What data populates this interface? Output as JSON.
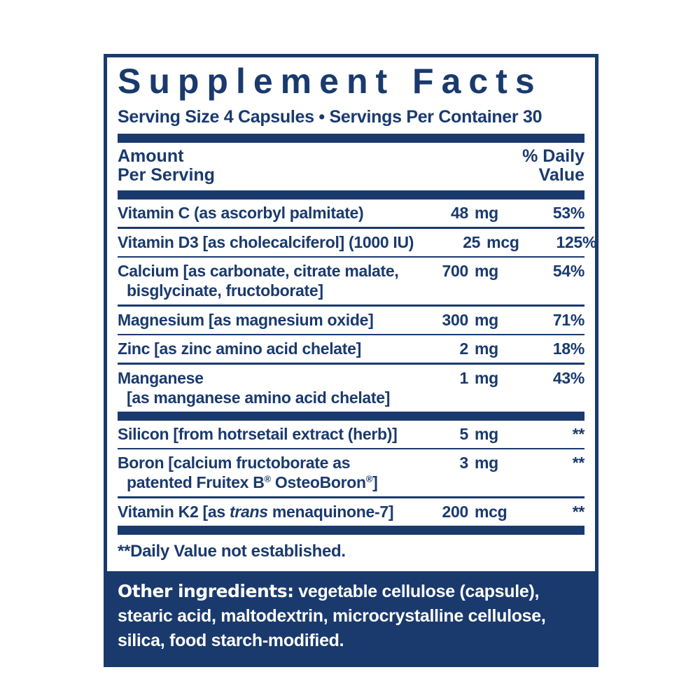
{
  "colors": {
    "navy": "#1a3a6e",
    "panel_background": "#ffffff",
    "footer_text": "#ffffff"
  },
  "title": "Supplement Facts",
  "serving_line": "Serving Size 4 Capsules • Servings Per Container 30",
  "header": {
    "amount_line1": "Amount",
    "amount_line2": "Per Serving",
    "dv_line1": "% Daily",
    "dv_line2": "Value"
  },
  "rows": [
    {
      "name": "Vitamin C (as ascorbyl palmitate)",
      "amount_num": "48",
      "amount_unit": "mg",
      "dv": "53%"
    },
    {
      "name": "Vitamin D3 [as cholecalciferol] (1000 IU)",
      "amount_num": "25",
      "amount_unit": "mcg",
      "dv": "125%"
    },
    {
      "name": "Calcium [as carbonate, citrate malate,",
      "name_line2": "bisglycinate, fructoborate]",
      "amount_num": "700",
      "amount_unit": "mg",
      "dv": "54%"
    },
    {
      "name": "Magnesium [as magnesium oxide]",
      "amount_num": "300",
      "amount_unit": "mg",
      "dv": "71%"
    },
    {
      "name": "Zinc [as zinc amino acid chelate]",
      "amount_num": "2",
      "amount_unit": "mg",
      "dv": "18%"
    },
    {
      "name": "Manganese",
      "name_line2": "[as manganese amino acid chelate]",
      "amount_num": "1",
      "amount_unit": "mg",
      "dv": "43%"
    },
    {
      "name": "Silicon [from hotrsetail extract (herb)]",
      "amount_num": "5",
      "amount_unit": "mg",
      "dv": "**"
    },
    {
      "name": "Boron [calcium fructoborate as",
      "name_line2_pre": "patented Fruitex B",
      "name_line2_sup1": "®",
      "name_line2_mid": " OsteoBoron",
      "name_line2_sup2": "®",
      "name_line2_post": "]",
      "amount_num": "3",
      "amount_unit": "mg",
      "dv": "**"
    },
    {
      "name_pre": "Vitamin K2 [as ",
      "name_italic": "trans",
      "name_post": " menaquinone-7]",
      "amount_num": "200",
      "amount_unit": "mcg",
      "dv": "**"
    }
  ],
  "footnote": "**Daily Value not established.",
  "other_ingredients": {
    "label": "Other ingredients:",
    "text": " vegetable cellulose (capsule), stearic acid, maltodextrin, microcrystalline cellulose, silica, food starch-modified."
  }
}
